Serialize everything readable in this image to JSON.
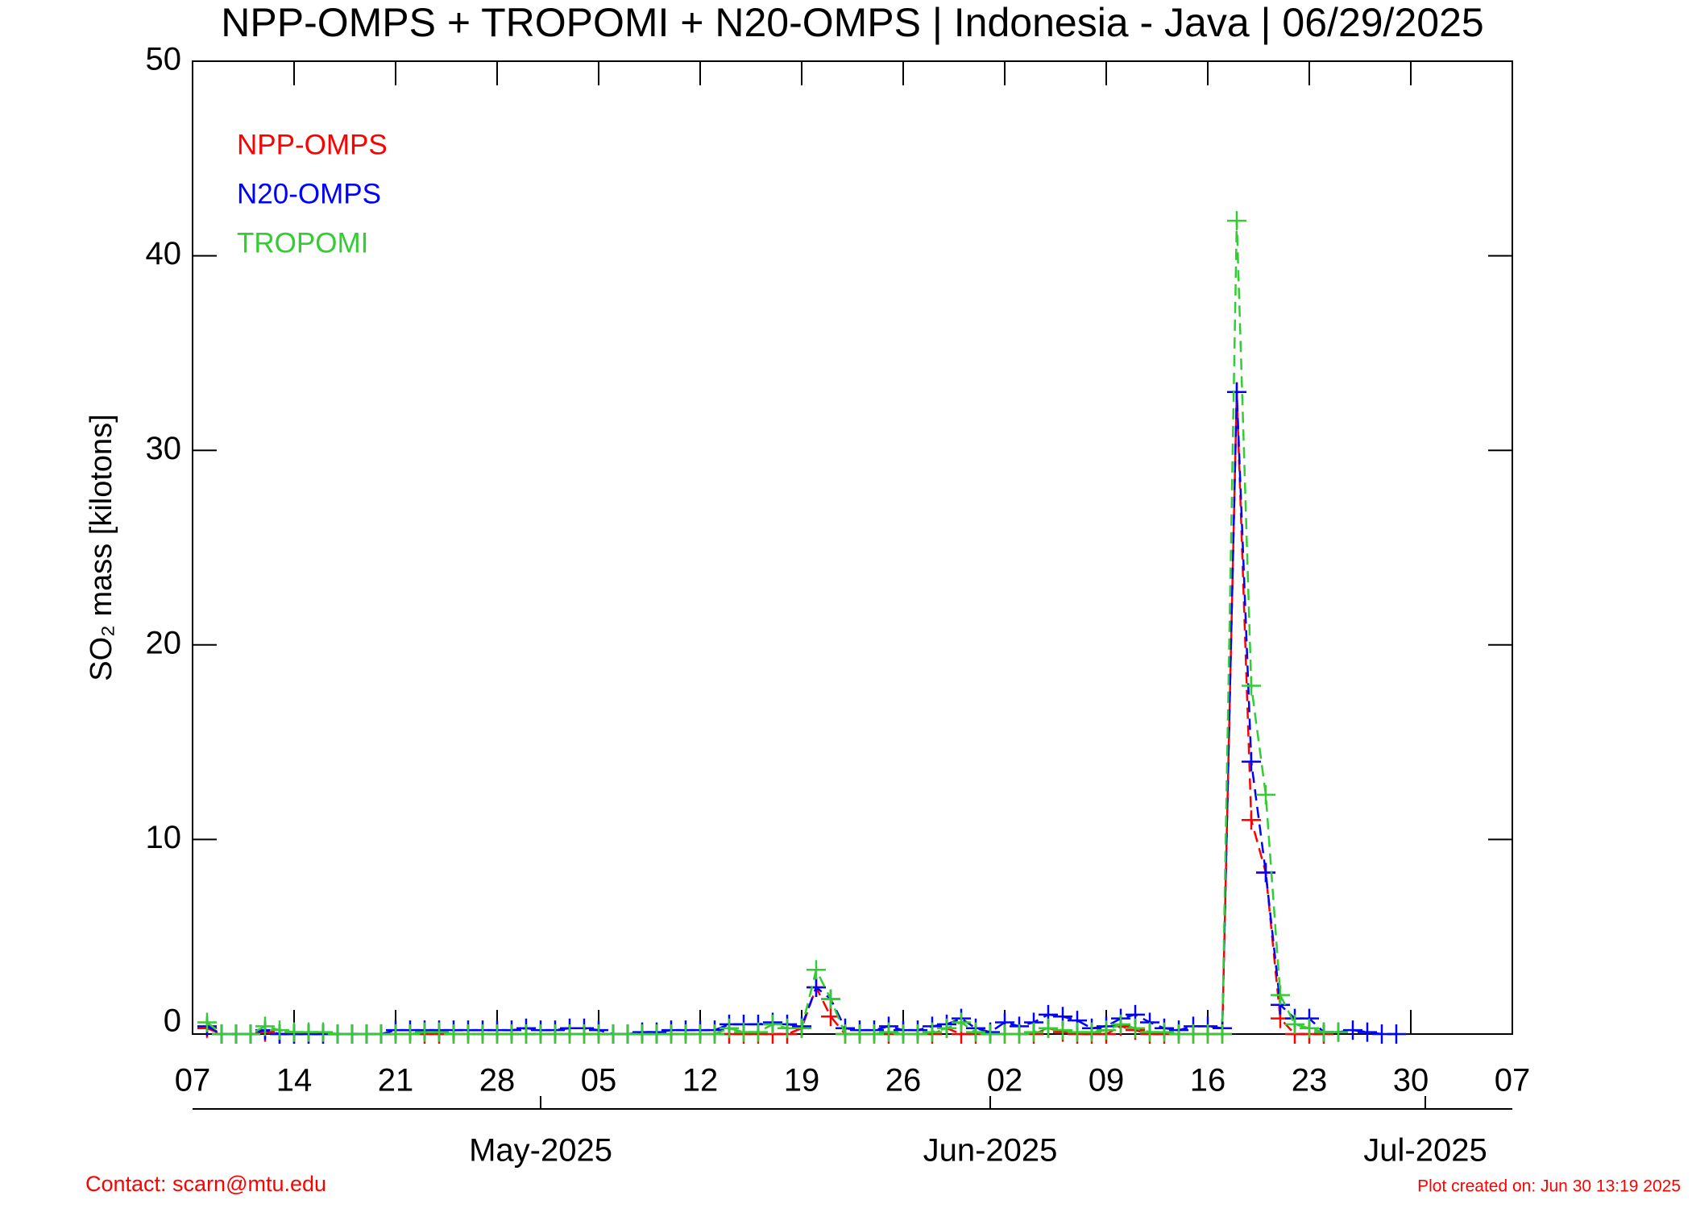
{
  "chart_data": {
    "type": "line",
    "title": "NPP-OMPS + TROPOMI + N20-OMPS | Indonesia - Java | 06/29/2025",
    "y_label": "SO₂ mass [kilotons]",
    "footer_left": "Contact: scarn@mtu.edu",
    "footer_right": "Plot created on: Jun 30 13:19 2025",
    "xlim": [
      "2025-04-07",
      "2025-07-07"
    ],
    "xticks": [
      {
        "value": "2025-04-07",
        "label": "07"
      },
      {
        "value": "2025-04-14",
        "label": "14"
      },
      {
        "value": "2025-04-21",
        "label": "21"
      },
      {
        "value": "2025-04-28",
        "label": "28"
      },
      {
        "value": "2025-05-05",
        "label": "05"
      },
      {
        "value": "2025-05-12",
        "label": "12"
      },
      {
        "value": "2025-05-19",
        "label": "19"
      },
      {
        "value": "2025-05-26",
        "label": "26"
      },
      {
        "value": "2025-06-02",
        "label": "02"
      },
      {
        "value": "2025-06-09",
        "label": "09"
      },
      {
        "value": "2025-06-16",
        "label": "16"
      },
      {
        "value": "2025-06-23",
        "label": "23"
      },
      {
        "value": "2025-06-30",
        "label": "30"
      },
      {
        "value": "2025-07-07",
        "label": "07"
      }
    ],
    "month_ticks": [
      {
        "value": "2025-05-01",
        "label": "May-2025"
      },
      {
        "value": "2025-06-01",
        "label": "Jun-2025"
      },
      {
        "value": "2025-07-01",
        "label": "Jul-2025"
      }
    ],
    "ylim": [
      0,
      50
    ],
    "yticks": [
      0,
      10,
      20,
      30,
      40,
      50
    ],
    "x": [
      "2025-04-08",
      "2025-04-09",
      "2025-04-10",
      "2025-04-11",
      "2025-04-12",
      "2025-04-13",
      "2025-04-14",
      "2025-04-15",
      "2025-04-16",
      "2025-04-17",
      "2025-04-18",
      "2025-04-19",
      "2025-04-20",
      "2025-04-21",
      "2025-04-22",
      "2025-04-23",
      "2025-04-24",
      "2025-04-25",
      "2025-04-26",
      "2025-04-27",
      "2025-04-28",
      "2025-04-29",
      "2025-04-30",
      "2025-05-01",
      "2025-05-02",
      "2025-05-03",
      "2025-05-04",
      "2025-05-05",
      "2025-05-06",
      "2025-05-07",
      "2025-05-08",
      "2025-05-09",
      "2025-05-10",
      "2025-05-11",
      "2025-05-12",
      "2025-05-13",
      "2025-05-14",
      "2025-05-15",
      "2025-05-16",
      "2025-05-17",
      "2025-05-18",
      "2025-05-19",
      "2025-05-20",
      "2025-05-21",
      "2025-05-22",
      "2025-05-23",
      "2025-05-24",
      "2025-05-25",
      "2025-05-26",
      "2025-05-27",
      "2025-05-28",
      "2025-05-29",
      "2025-05-30",
      "2025-05-31",
      "2025-06-01",
      "2025-06-02",
      "2025-06-03",
      "2025-06-04",
      "2025-06-05",
      "2025-06-06",
      "2025-06-07",
      "2025-06-08",
      "2025-06-09",
      "2025-06-10",
      "2025-06-11",
      "2025-06-12",
      "2025-06-13",
      "2025-06-14",
      "2025-06-15",
      "2025-06-16",
      "2025-06-17",
      "2025-06-18",
      "2025-06-19",
      "2025-06-20",
      "2025-06-21",
      "2025-06-22",
      "2025-06-23",
      "2025-06-24",
      "2025-06-25",
      "2025-06-26",
      "2025-06-27",
      "2025-06-28",
      "2025-06-29"
    ],
    "series": [
      {
        "name": "NPP-OMPS",
        "color": "#ff0000",
        "values": [
          0.3,
          0,
          0,
          0,
          0.1,
          0,
          0,
          0,
          0,
          0,
          0,
          0,
          0,
          0,
          0,
          0,
          0,
          0,
          0,
          0,
          0,
          0,
          0,
          0,
          0,
          0,
          0,
          0,
          0,
          0,
          0,
          0,
          0,
          0,
          0,
          0,
          0,
          0,
          0,
          0,
          0,
          0.3,
          2.4,
          0.9,
          0,
          0,
          0,
          0,
          0,
          0,
          0,
          0.3,
          0,
          0,
          0,
          0,
          0,
          0,
          0.3,
          0.1,
          0,
          0,
          0,
          0.4,
          0.2,
          0,
          0,
          0,
          0,
          0,
          0,
          33,
          11,
          8.3,
          0.8,
          0,
          0,
          0,
          null,
          null,
          null,
          null,
          null
        ]
      },
      {
        "name": "N20-OMPS",
        "color": "#0000ff",
        "values": [
          0.4,
          0,
          0,
          0,
          0.2,
          0,
          0,
          0,
          0,
          0,
          0,
          0,
          0,
          0.2,
          0.2,
          0.2,
          0.2,
          0.2,
          0.2,
          0.2,
          0.2,
          0.2,
          0.3,
          0.2,
          0.2,
          0.3,
          0.3,
          0.2,
          0,
          0,
          0.1,
          0.1,
          0.2,
          0.2,
          0.2,
          0.2,
          0.5,
          0.5,
          0.5,
          0.6,
          0.5,
          0.4,
          2.4,
          1.8,
          0.3,
          0.2,
          0.2,
          0.4,
          0.2,
          0.2,
          0.4,
          0.5,
          0.8,
          0.3,
          0.1,
          0.6,
          0.4,
          0.6,
          1.0,
          0.9,
          0.7,
          0.3,
          0.4,
          0.8,
          1.0,
          0.6,
          0.3,
          0.2,
          0.4,
          0.4,
          0.3,
          33,
          14,
          8.3,
          1.5,
          0.8,
          0.8,
          0.1,
          0.1,
          0.2,
          0.1,
          0,
          0
        ]
      },
      {
        "name": "TROPOMI",
        "color": "#33cc33",
        "values": [
          0.6,
          0,
          0,
          0,
          0.4,
          0.2,
          0.1,
          0.1,
          0.1,
          0,
          0,
          0,
          0,
          0,
          0,
          0.1,
          0.1,
          0,
          0,
          0,
          0,
          0,
          0,
          0,
          0,
          0,
          0,
          0,
          0,
          0,
          0,
          0,
          0,
          0,
          0,
          0,
          0.3,
          0.1,
          0.1,
          0.5,
          0.3,
          0.3,
          3.3,
          1.8,
          0,
          0,
          0,
          0.1,
          0,
          0,
          0.1,
          0.3,
          0.6,
          0.1,
          0,
          0,
          0,
          0.1,
          0.3,
          0.2,
          0.1,
          0.1,
          0.2,
          0.5,
          0.3,
          0.1,
          0.1,
          0,
          0,
          0,
          0,
          41.8,
          17.9,
          12.3,
          2,
          0.5,
          0.3,
          0.1,
          0.1,
          null,
          null,
          null,
          null
        ]
      }
    ]
  }
}
